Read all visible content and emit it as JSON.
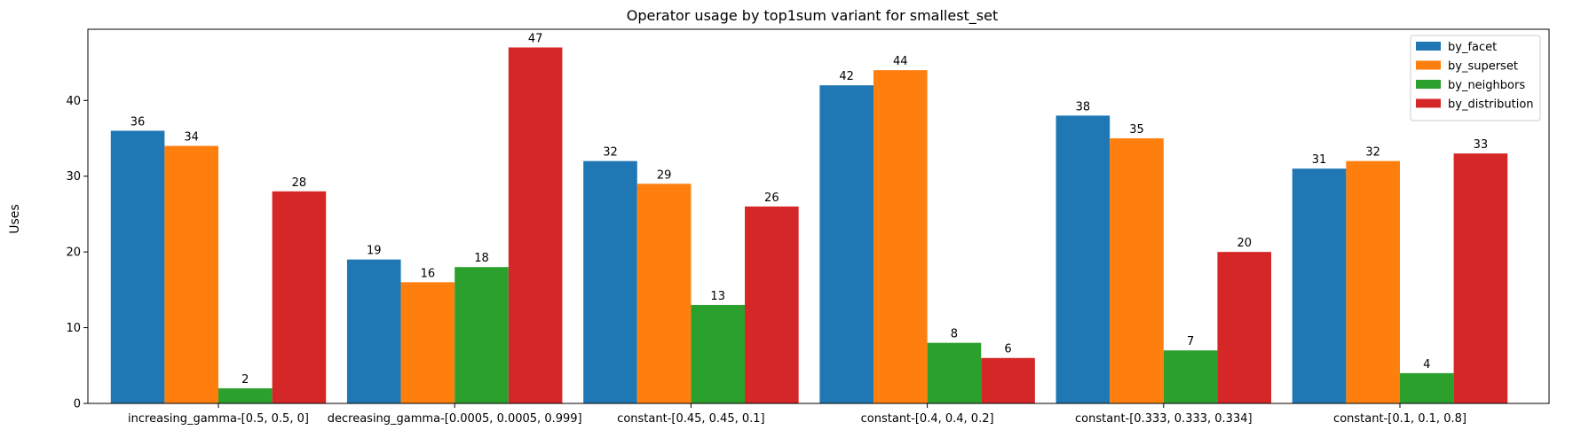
{
  "chart_data": {
    "type": "bar",
    "title": "Operator usage by top1sum variant for smallest_set",
    "xlabel": "",
    "ylabel": "Uses",
    "ylim": [
      0,
      49.4
    ],
    "yticks": [
      0,
      10,
      20,
      30,
      40
    ],
    "grid": false,
    "legend_position": "top-right",
    "categories": [
      "increasing_gamma-[0.5, 0.5, 0]",
      "decreasing_gamma-[0.0005, 0.0005, 0.999]",
      "constant-[0.45, 0.45, 0.1]",
      "constant-[0.4, 0.4, 0.2]",
      "constant-[0.333, 0.333, 0.334]",
      "constant-[0.1, 0.1, 0.8]"
    ],
    "series": [
      {
        "name": "by_facet",
        "color": "#1f77b4",
        "values": [
          36,
          19,
          32,
          42,
          38,
          31
        ]
      },
      {
        "name": "by_superset",
        "color": "#ff7f0e",
        "values": [
          34,
          16,
          29,
          44,
          35,
          32
        ]
      },
      {
        "name": "by_neighbors",
        "color": "#2ca02c",
        "values": [
          2,
          18,
          13,
          8,
          7,
          4
        ]
      },
      {
        "name": "by_distribution",
        "color": "#d62728",
        "values": [
          28,
          47,
          26,
          6,
          20,
          33
        ]
      }
    ]
  }
}
